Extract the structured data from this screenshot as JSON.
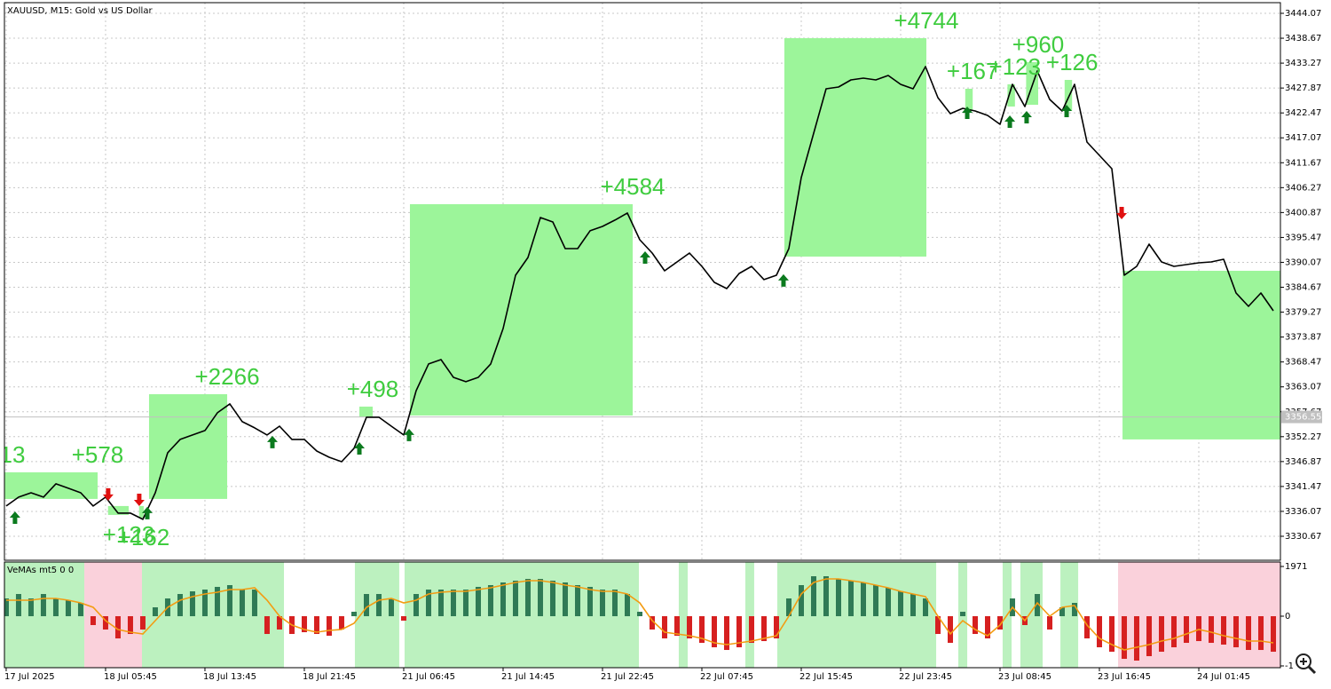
{
  "chart_data": [
    {
      "type": "line",
      "title": "XAUUSD, M15:  Gold vs US Dollar",
      "series": [
        {
          "color": "#000000",
          "values": [
            3337.23,
            3339.15,
            3340.11,
            3339.15,
            3342.04,
            3341.08,
            3340.11,
            3337.23,
            3339.15,
            3335.69,
            3335.69,
            3334.34,
            3340.11,
            3348.78,
            3351.67,
            3352.63,
            3353.59,
            3357.44,
            3359.37,
            3355.52,
            3354.17,
            3352.63,
            3354.55,
            3351.67,
            3351.67,
            3349.16,
            3347.81,
            3346.85,
            3349.74,
            3356.48,
            3356.48,
            3354.55,
            3352.63,
            3362.25,
            3368.03,
            3368.99,
            3365.14,
            3364.18,
            3365.14,
            3368.03,
            3375.73,
            3387.28,
            3391.13,
            3399.79,
            3398.83,
            3393.05,
            3393.05,
            3396.91,
            3397.87,
            3399.22,
            3400.76,
            3394.98,
            3392.09,
            3388.24,
            3390.17,
            3392.09,
            3389.2,
            3385.74,
            3384.39,
            3387.66,
            3389.2,
            3386.32,
            3387.28,
            3393.05,
            3408.46,
            3418.08,
            3427.71,
            3428.09,
            3429.63,
            3430.02,
            3429.63,
            3430.59,
            3428.67,
            3427.71,
            3432.52,
            3425.78,
            3422.32,
            3423.47,
            3422.89,
            3421.93,
            3420.01,
            3428.67,
            3423.86,
            3431.56,
            3425.4,
            3422.89,
            3428.67,
            3416.16,
            3413.27,
            3410.38,
            3387.28,
            3389.2,
            3394.02,
            3390.17,
            3389.2,
            3389.59,
            3389.97,
            3390.17,
            3390.74,
            3383.43,
            3380.54,
            3383.43,
            3379.58
          ]
        }
      ],
      "xlim": [
        -0.14,
        102.57
      ],
      "ylim": [
        3325.47,
        3446.38
      ],
      "yticks": [
        3444.07,
        3438.67,
        3433.27,
        3427.87,
        3422.47,
        3417.07,
        3411.67,
        3406.27,
        3400.87,
        3395.47,
        3390.07,
        3384.67,
        3379.27,
        3373.87,
        3368.47,
        3363.07,
        3357.67,
        3352.27,
        3346.87,
        3341.47,
        3336.07,
        3330.67
      ],
      "grid": true,
      "current_price": 3356.55,
      "signal_color": "#9cf59a",
      "signals": [
        {
          "label": "13",
          "direction": "buy",
          "x": [
            -1,
            0.5
          ],
          "y": [
            3338.77,
            3344.54
          ]
        },
        {
          "label": "+578",
          "direction": "buy",
          "x": [
            -0.14,
            7.36
          ],
          "y": [
            3338.77,
            3344.54
          ]
        },
        {
          "label": "+123",
          "direction": "sell",
          "x": [
            8.2,
            9.86
          ],
          "y": [
            3335.3,
            3337.23
          ]
        },
        {
          "label": "+162",
          "direction": "sell",
          "x": [
            10.7,
            11.07
          ],
          "y": [
            3334.72,
            3337.23
          ]
        },
        {
          "label": "+2266",
          "direction": "buy",
          "x": [
            11.5,
            17.79
          ],
          "y": [
            3338.77,
            3361.48
          ]
        },
        {
          "label": "+498",
          "direction": "buy",
          "x": [
            28.43,
            29.5
          ],
          "y": [
            3356.48,
            3358.79
          ]
        },
        {
          "label": "+4584",
          "direction": "buy",
          "x": [
            32.5,
            50.43
          ],
          "y": [
            3356.86,
            3402.68
          ]
        },
        {
          "label": "+4744",
          "direction": "buy",
          "x": [
            62.64,
            74.07
          ],
          "y": [
            3391.32,
            3438.68
          ]
        },
        {
          "label": "+167",
          "direction": "buy",
          "x": [
            77.2,
            77.8
          ],
          "y": [
            3422.89,
            3427.71
          ]
        },
        {
          "label": "+123",
          "direction": "buy",
          "x": [
            80.6,
            81.2
          ],
          "y": [
            3423.86,
            3428.67
          ]
        },
        {
          "label": "+960",
          "direction": "buy",
          "x": [
            82.1,
            83.07
          ],
          "y": [
            3424.24,
            3433.48
          ]
        },
        {
          "label": "+126",
          "direction": "buy",
          "x": [
            85.2,
            85.8
          ],
          "y": [
            3422.89,
            3429.63
          ]
        },
        {
          "direction": "buy",
          "x": [
            89.86,
            102.57
          ],
          "y": [
            3351.67,
            3388.24
          ]
        }
      ],
      "arrows": [
        {
          "dir": "up",
          "x": 0.71,
          "y": 3334.72
        },
        {
          "dir": "up",
          "x": 11.36,
          "y": 3335.69
        },
        {
          "dir": "up",
          "x": 21.43,
          "y": 3351.09
        },
        {
          "dir": "up",
          "x": 28.43,
          "y": 3349.74
        },
        {
          "dir": "up",
          "x": 32.43,
          "y": 3352.63
        },
        {
          "dir": "up",
          "x": 51.43,
          "y": 3391.13
        },
        {
          "dir": "up",
          "x": 62.57,
          "y": 3386.13
        },
        {
          "dir": "up",
          "x": 77.36,
          "y": 3422.51
        },
        {
          "dir": "up",
          "x": 80.79,
          "y": 3420.58
        },
        {
          "dir": "up",
          "x": 82.14,
          "y": 3421.55
        },
        {
          "dir": "up",
          "x": 85.36,
          "y": 3422.89
        },
        {
          "dir": "down",
          "x": 8.21,
          "y": 3339.73
        },
        {
          "dir": "down",
          "x": 10.71,
          "y": 3338.57
        },
        {
          "dir": "down",
          "x": 89.79,
          "y": 3400.76
        }
      ]
    },
    {
      "type": "bar",
      "title": "VeMAs mt5 0 0",
      "series": [
        {
          "color": "#2f7a55",
          "negative_color": "#d62020",
          "values": [
            704,
            880,
            704,
            880,
            704,
            634,
            528,
            -352,
            -528,
            -880,
            -704,
            -528,
            352,
            704,
            880,
            986,
            1056,
            1162,
            1232,
            1056,
            1056,
            -704,
            -528,
            -704,
            -634,
            -704,
            -774,
            -528,
            176,
            880,
            880,
            704,
            -176,
            880,
            1056,
            1056,
            1056,
            1056,
            1162,
            1232,
            1338,
            1408,
            1478,
            1478,
            1408,
            1338,
            1232,
            1162,
            1056,
            1056,
            880,
            176,
            -528,
            -880,
            -774,
            -880,
            -1056,
            -1232,
            -1338,
            -1232,
            -1056,
            -986,
            -880,
            704,
            1232,
            1584,
            1584,
            1478,
            1408,
            1338,
            1232,
            1126,
            986,
            880,
            704,
            -704,
            -1056,
            176,
            -704,
            -880,
            -528,
            704,
            -352,
            880,
            -528,
            352,
            528,
            -880,
            -1232,
            -1408,
            -1690,
            -1760,
            -1584,
            -1408,
            -1232,
            -1056,
            -986,
            -1056,
            -1126,
            -1232,
            -1338,
            -1338,
            -1408
          ]
        },
        {
          "type": "line",
          "color": "#f39c12",
          "values": [
            634,
            634,
            634,
            704,
            704,
            634,
            528,
            352,
            -176,
            -528,
            -634,
            -704,
            -176,
            352,
            634,
            774,
            880,
            950,
            1056,
            1056,
            1126,
            634,
            0,
            -352,
            -528,
            -634,
            -563,
            -528,
            -282,
            352,
            634,
            704,
            528,
            634,
            880,
            950,
            986,
            986,
            1056,
            1126,
            1232,
            1338,
            1408,
            1408,
            1338,
            1232,
            1162,
            1056,
            986,
            986,
            880,
            528,
            -176,
            -634,
            -704,
            -774,
            -880,
            -1056,
            -1126,
            -1056,
            -986,
            -880,
            -774,
            0,
            880,
            1338,
            1478,
            1478,
            1408,
            1338,
            1232,
            1126,
            986,
            880,
            774,
            0,
            -704,
            -176,
            -528,
            -774,
            -352,
            352,
            -176,
            528,
            0,
            352,
            422,
            -352,
            -880,
            -1126,
            -1338,
            -1232,
            -1126,
            -986,
            -880,
            -704,
            -528,
            -634,
            -774,
            -880,
            -986,
            -986,
            -1056
          ]
        }
      ],
      "xlim": [
        -0.14,
        102.57
      ],
      "ylim": [
        -2041,
        2147
      ],
      "yticks": [
        1971,
        0,
        {
          "value": -1971,
          "label": "-1"
        }
      ],
      "xticks": [
        {
          "value": 0,
          "label": "17 Jul 2025"
        },
        {
          "value": 8,
          "label": "18 Jul 05:45"
        },
        {
          "value": 16,
          "label": "18 Jul 13:45"
        },
        {
          "value": 24,
          "label": "18 Jul 21:45"
        },
        {
          "value": 32,
          "label": "21 Jul 06:45"
        },
        {
          "value": 40,
          "label": "21 Jul 14:45"
        },
        {
          "value": 48,
          "label": "21 Jul 22:45"
        },
        {
          "value": 56,
          "label": "22 Jul 07:45"
        },
        {
          "value": 64,
          "label": "22 Jul 15:45"
        },
        {
          "value": 72,
          "label": "22 Jul 23:45"
        },
        {
          "value": 80,
          "label": "23 Jul 08:45"
        },
        {
          "value": 88,
          "label": "23 Jul 16:45"
        },
        {
          "value": 96,
          "label": "24 Jul 01:45"
        }
      ],
      "zones": [
        {
          "color": "#a6ecaa",
          "x": [
            -0.14,
            6.29
          ]
        },
        {
          "color": "#f8c2cf",
          "x": [
            6.29,
            10.93
          ]
        },
        {
          "color": "#a6ecaa",
          "x": [
            10.93,
            22.36
          ]
        },
        {
          "color": "#a6ecaa",
          "x": [
            28.07,
            31.64
          ]
        },
        {
          "color": "#a6ecaa",
          "x": [
            32.07,
            50.93
          ]
        },
        {
          "color": "#a6ecaa",
          "x": [
            54.14,
            54.86
          ]
        },
        {
          "color": "#a6ecaa",
          "x": [
            59.5,
            60.21
          ]
        },
        {
          "color": "#a6ecaa",
          "x": [
            62.07,
            74.86
          ]
        },
        {
          "color": "#a6ecaa",
          "x": [
            76.64,
            77.36
          ]
        },
        {
          "color": "#a6ecaa",
          "x": [
            80.21,
            80.93
          ]
        },
        {
          "color": "#a6ecaa",
          "x": [
            81.64,
            83.43
          ]
        },
        {
          "color": "#a6ecaa",
          "x": [
            84.86,
            86.29
          ]
        },
        {
          "color": "#f8c2cf",
          "x": [
            89.5,
            102.57
          ]
        }
      ]
    }
  ]
}
